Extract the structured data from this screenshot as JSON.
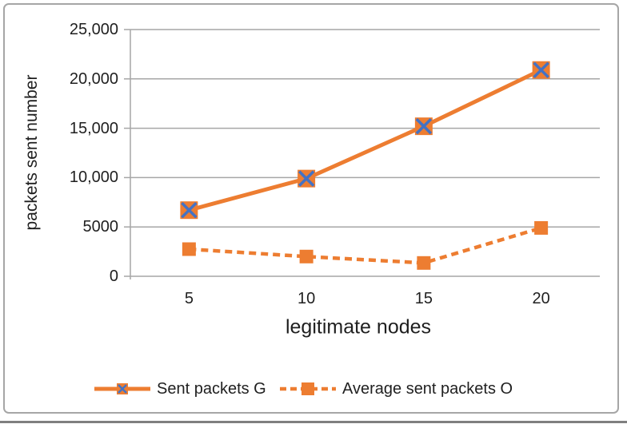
{
  "chart_data": {
    "type": "line",
    "x": [
      5,
      10,
      15,
      20
    ],
    "xtick_labels": [
      "5",
      "10",
      "15",
      "20"
    ],
    "series": [
      {
        "name": "Sent packets G",
        "values": [
          6700,
          9900,
          15200,
          20900
        ],
        "line_style": "solid",
        "marker": "square-with-x"
      },
      {
        "name": "Average sent packets O",
        "values": [
          2750,
          2000,
          1350,
          4900
        ],
        "line_style": "dashed",
        "marker": "square"
      }
    ],
    "xlabel": "legitimate nodes",
    "ylabel": "packets sent number",
    "ylim": [
      0,
      25000
    ],
    "ytick_values": [
      0,
      5000,
      10000,
      15000,
      20000,
      25000
    ],
    "ytick_labels": [
      "0",
      "5000",
      "10,000",
      "15,000",
      "20,000",
      "25,000"
    ],
    "grid": "horizontal",
    "legend_position": "bottom",
    "colors": {
      "line": "#ED7D31",
      "marker_fill": "#ED7D31",
      "marker_x": "#4472C4",
      "grid": "#A6A6A6",
      "axis": "#A6A6A6",
      "text": "#1F1F1F",
      "border": "#A6A6A6",
      "bottom_rule": "#7F7F7F"
    }
  }
}
